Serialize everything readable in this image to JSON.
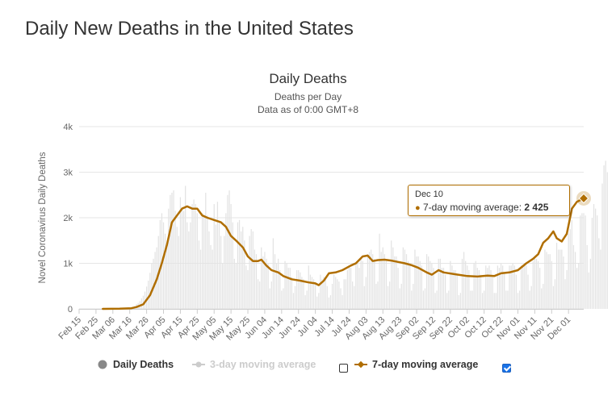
{
  "page": {
    "title": "Daily New Deaths in the United States"
  },
  "chart_data": {
    "type": "bar",
    "title": "Daily Deaths",
    "subtitle_lines": [
      "Deaths per Day",
      "Data as of 0:00 GMT+8"
    ],
    "ylabel": "Novel Coronavirus Daily Deaths",
    "ylim": [
      0,
      4000
    ],
    "y_ticks": [
      0,
      1000,
      2000,
      3000,
      4000
    ],
    "y_tick_labels": [
      "0",
      "1k",
      "2k",
      "3k",
      "4k"
    ],
    "x_range": [
      "2020-02-15",
      "2020-12-10"
    ],
    "x_ticks": [
      "2020-02-15",
      "2020-02-25",
      "2020-03-06",
      "2020-03-16",
      "2020-03-26",
      "2020-04-05",
      "2020-04-15",
      "2020-04-25",
      "2020-05-05",
      "2020-05-15",
      "2020-05-25",
      "2020-06-04",
      "2020-06-14",
      "2020-06-24",
      "2020-07-04",
      "2020-07-14",
      "2020-07-24",
      "2020-08-03",
      "2020-08-13",
      "2020-08-23",
      "2020-09-02",
      "2020-09-12",
      "2020-09-22",
      "2020-10-02",
      "2020-10-12",
      "2020-10-22",
      "2020-11-01",
      "2020-11-11",
      "2020-11-21",
      "2020-12-01"
    ],
    "x_tick_labels": [
      "Feb 15",
      "Feb 25",
      "Mar 06",
      "Mar 16",
      "Mar 26",
      "Apr 05",
      "Apr 15",
      "Apr 25",
      "May 05",
      "May 15",
      "May 25",
      "Jun 04",
      "Jun 14",
      "Jun 24",
      "Jul 04",
      "Jul 14",
      "Jul 24",
      "Aug 03",
      "Aug 13",
      "Aug 23",
      "Sep 02",
      "Sep 12",
      "Sep 22",
      "Oct 02",
      "Oct 12",
      "Oct 22",
      "Nov 01",
      "Nov 11",
      "Nov 21",
      "Dec 01"
    ],
    "grid": true,
    "series": [
      {
        "name": "Daily Deaths",
        "type": "bar",
        "color": "#e3e3e3",
        "start_date": "2020-02-29",
        "values": [
          1,
          0,
          1,
          2,
          1,
          4,
          2,
          2,
          3,
          5,
          6,
          8,
          7,
          13,
          11,
          20,
          25,
          40,
          47,
          60,
          105,
          130,
          170,
          230,
          290,
          380,
          490,
          620,
          790,
          1000,
          1100,
          1250,
          1350,
          1600,
          1950,
          2100,
          1900,
          1650,
          1400,
          2200,
          2500,
          2550,
          2600,
          2150,
          1800,
          1600,
          2450,
          2200,
          2150,
          2700,
          1900,
          1700,
          1900,
          2300,
          2400,
          2300,
          2100,
          1500,
          1300,
          2100,
          2050,
          2550,
          2050,
          1700,
          1400,
          1300,
          2300,
          1850,
          2350,
          1900,
          1600,
          1000,
          1600,
          2100,
          2500,
          2600,
          2300,
          1900,
          1100,
          1000,
          1900,
          1950,
          1700,
          1800,
          1500,
          950,
          850,
          1600,
          1750,
          1700,
          1300,
          1200,
          650,
          600,
          1350,
          1150,
          1250,
          1100,
          1000,
          450,
          600,
          1550,
          1200,
          1000,
          1100,
          850,
          400,
          450,
          1050,
          1000,
          900,
          900,
          700,
          350,
          500,
          850,
          850,
          800,
          700,
          650,
          300,
          400,
          950,
          750,
          700,
          650,
          550,
          270,
          350,
          750,
          650,
          700,
          650,
          500,
          250,
          300,
          550,
          750,
          700,
          650,
          600,
          450,
          300,
          650,
          650,
          850,
          950,
          900,
          600,
          500,
          1000,
          1000,
          900,
          1100,
          1050,
          500,
          700,
          1200,
          1250,
          1300,
          1200,
          1100,
          550,
          600,
          1650,
          1250,
          1350,
          1200,
          1050,
          500,
          600,
          1500,
          1350,
          1150,
          1150,
          900,
          450,
          550,
          1350,
          1300,
          1200,
          1050,
          1000,
          400,
          550,
          1300,
          1150,
          1150,
          1050,
          950,
          400,
          450,
          1200,
          1150,
          1050,
          1000,
          900,
          350,
          400,
          1100,
          1100,
          900,
          900,
          750,
          350,
          400,
          1050,
          950,
          850,
          850,
          750,
          300,
          350,
          1100,
          1250,
          1050,
          950,
          850,
          400,
          400,
          1000,
          1050,
          900,
          850,
          750,
          350,
          400,
          950,
          900,
          950,
          850,
          700,
          350,
          350,
          950,
          900,
          1000,
          950,
          800,
          400,
          400,
          950,
          950,
          1000,
          950,
          750,
          350,
          400,
          950,
          950,
          1000,
          950,
          750,
          400,
          500,
          1050,
          1100,
          1100,
          1050,
          900,
          450,
          550,
          1300,
          1250,
          1200,
          1200,
          1050,
          500,
          650,
          1450,
          1300,
          1300,
          1300,
          1150,
          650,
          850,
          1650,
          1750,
          1950,
          1400,
          1250,
          900,
          1000,
          2050,
          2100,
          2100,
          2050,
          1400,
          800,
          1100,
          2000,
          2300,
          2200,
          2050,
          1550,
          1300,
          2750,
          3150,
          3250,
          3000
        ]
      },
      {
        "name": "3-day moving average",
        "type": "line",
        "visible": false,
        "color": "#cccccc"
      },
      {
        "name": "7-day moving average",
        "type": "line",
        "color": "#b06e00",
        "interpolation": "linear",
        "points": [
          [
            "2020-02-29",
            0
          ],
          [
            "2020-03-10",
            3
          ],
          [
            "2020-03-17",
            15
          ],
          [
            "2020-03-20",
            40
          ],
          [
            "2020-03-24",
            100
          ],
          [
            "2020-03-28",
            300
          ],
          [
            "2020-04-01",
            650
          ],
          [
            "2020-04-04",
            1000
          ],
          [
            "2020-04-07",
            1400
          ],
          [
            "2020-04-10",
            1900
          ],
          [
            "2020-04-13",
            2050
          ],
          [
            "2020-04-16",
            2200
          ],
          [
            "2020-04-19",
            2250
          ],
          [
            "2020-04-22",
            2200
          ],
          [
            "2020-04-25",
            2200
          ],
          [
            "2020-04-28",
            2050
          ],
          [
            "2020-05-01",
            2000
          ],
          [
            "2020-05-05",
            1950
          ],
          [
            "2020-05-09",
            1900
          ],
          [
            "2020-05-12",
            1800
          ],
          [
            "2020-05-15",
            1600
          ],
          [
            "2020-05-18",
            1500
          ],
          [
            "2020-05-22",
            1350
          ],
          [
            "2020-05-25",
            1150
          ],
          [
            "2020-05-28",
            1050
          ],
          [
            "2020-05-31",
            1050
          ],
          [
            "2020-06-02",
            1080
          ],
          [
            "2020-06-05",
            950
          ],
          [
            "2020-06-08",
            850
          ],
          [
            "2020-06-12",
            800
          ],
          [
            "2020-06-15",
            720
          ],
          [
            "2020-06-20",
            650
          ],
          [
            "2020-06-25",
            620
          ],
          [
            "2020-06-30",
            580
          ],
          [
            "2020-07-04",
            560
          ],
          [
            "2020-07-06",
            520
          ],
          [
            "2020-07-09",
            620
          ],
          [
            "2020-07-12",
            780
          ],
          [
            "2020-07-16",
            800
          ],
          [
            "2020-07-20",
            850
          ],
          [
            "2020-07-25",
            950
          ],
          [
            "2020-07-28",
            1000
          ],
          [
            "2020-08-01",
            1150
          ],
          [
            "2020-08-04",
            1170
          ],
          [
            "2020-08-07",
            1050
          ],
          [
            "2020-08-10",
            1070
          ],
          [
            "2020-08-14",
            1080
          ],
          [
            "2020-08-18",
            1060
          ],
          [
            "2020-08-22",
            1030
          ],
          [
            "2020-08-26",
            1000
          ],
          [
            "2020-08-30",
            960
          ],
          [
            "2020-09-03",
            900
          ],
          [
            "2020-09-08",
            800
          ],
          [
            "2020-09-11",
            750
          ],
          [
            "2020-09-15",
            850
          ],
          [
            "2020-09-18",
            800
          ],
          [
            "2020-09-25",
            760
          ],
          [
            "2020-10-02",
            720
          ],
          [
            "2020-10-08",
            710
          ],
          [
            "2020-10-14",
            730
          ],
          [
            "2020-10-18",
            720
          ],
          [
            "2020-10-22",
            780
          ],
          [
            "2020-10-27",
            800
          ],
          [
            "2020-11-01",
            850
          ],
          [
            "2020-11-06",
            1000
          ],
          [
            "2020-11-10",
            1100
          ],
          [
            "2020-11-13",
            1200
          ],
          [
            "2020-11-16",
            1450
          ],
          [
            "2020-11-19",
            1550
          ],
          [
            "2020-11-22",
            1700
          ],
          [
            "2020-11-24",
            1550
          ],
          [
            "2020-11-27",
            1480
          ],
          [
            "2020-11-30",
            1650
          ],
          [
            "2020-12-03",
            2200
          ],
          [
            "2020-12-06",
            2350
          ],
          [
            "2020-12-10",
            2425
          ]
        ]
      }
    ],
    "legend": [
      {
        "label": "Daily Deaths",
        "marker": "circle",
        "color": "#888888",
        "enabled": true,
        "checkbox": false
      },
      {
        "label": "3-day moving average",
        "marker": "circle",
        "color": "#cccccc",
        "enabled": false,
        "checkbox": true,
        "checked": false
      },
      {
        "label": "7-day moving average",
        "marker": "diamond",
        "color": "#b06e00",
        "enabled": true,
        "checkbox": true,
        "checked": true
      }
    ],
    "tooltip": {
      "date": "Dec 10",
      "series": "7-day moving average:",
      "value": "2 425"
    }
  }
}
